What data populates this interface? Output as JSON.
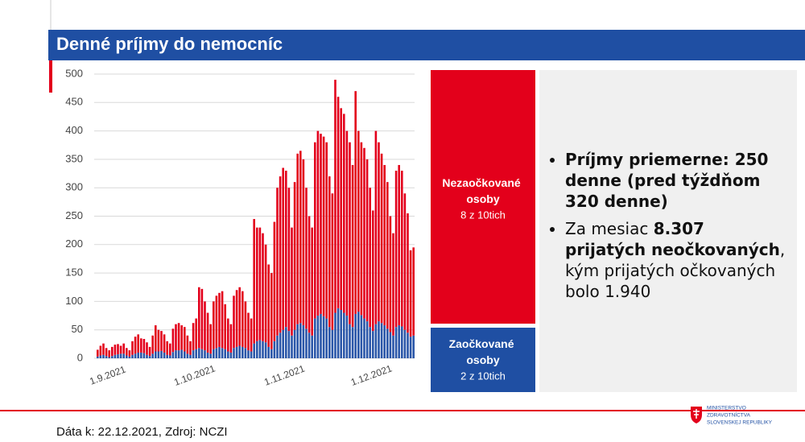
{
  "header": {
    "title": "Denné príjmy do nemocníc"
  },
  "chart_data": {
    "type": "stacked_bar",
    "categories": [
      "1.9.2021",
      null,
      null,
      null,
      null,
      null,
      null,
      null,
      null,
      null,
      null,
      null,
      null,
      null,
      null,
      null,
      null,
      null,
      null,
      null,
      null,
      null,
      null,
      null,
      null,
      null,
      null,
      null,
      null,
      null,
      "1.10.2021",
      null,
      null,
      null,
      null,
      null,
      null,
      null,
      null,
      null,
      null,
      null,
      null,
      null,
      null,
      null,
      null,
      null,
      null,
      null,
      null,
      null,
      null,
      null,
      null,
      null,
      null,
      null,
      null,
      null,
      null,
      "1.11.2021",
      null,
      null,
      null,
      null,
      null,
      null,
      null,
      null,
      null,
      null,
      null,
      null,
      null,
      null,
      null,
      null,
      null,
      null,
      null,
      null,
      null,
      null,
      null,
      null,
      null,
      null,
      null,
      null,
      null,
      "1.12.2021",
      null,
      null,
      null,
      null,
      null,
      null,
      null,
      null,
      null,
      null,
      null,
      null,
      null,
      null,
      null,
      null,
      null,
      null
    ],
    "series": [
      {
        "name": "Zaočkované osoby",
        "share": "2 z 10tich",
        "color": "#2a56a8",
        "values": [
          3,
          5,
          6,
          4,
          2,
          4,
          6,
          7,
          8,
          8,
          5,
          3,
          6,
          8,
          10,
          10,
          9,
          6,
          4,
          8,
          12,
          12,
          13,
          10,
          6,
          5,
          11,
          14,
          14,
          15,
          12,
          8,
          6,
          14,
          16,
          18,
          16,
          14,
          10,
          8,
          16,
          18,
          20,
          18,
          16,
          12,
          10,
          18,
          20,
          22,
          20,
          18,
          14,
          12,
          26,
          30,
          32,
          30,
          28,
          20,
          16,
          30,
          40,
          45,
          50,
          55,
          48,
          40,
          50,
          60,
          62,
          58,
          52,
          45,
          40,
          70,
          75,
          78,
          74,
          70,
          55,
          50,
          80,
          88,
          85,
          80,
          75,
          60,
          55,
          78,
          82,
          76,
          70,
          65,
          55,
          48,
          60,
          65,
          62,
          58,
          52,
          46,
          40,
          55,
          58,
          56,
          50,
          45,
          38,
          40
        ]
      },
      {
        "name": "Nezaočkované osoby",
        "share": "8 z 10tich",
        "color": "#e3001b",
        "values": [
          12,
          17,
          20,
          14,
          12,
          16,
          18,
          18,
          14,
          18,
          13,
          11,
          24,
          30,
          32,
          25,
          25,
          22,
          16,
          32,
          46,
          38,
          35,
          32,
          24,
          21,
          41,
          46,
          48,
          43,
          43,
          32,
          24,
          48,
          54,
          107,
          106,
          86,
          70,
          52,
          84,
          92,
          95,
          100,
          79,
          58,
          50,
          92,
          100,
          103,
          98,
          82,
          66,
          58,
          219,
          200,
          198,
          190,
          172,
          145,
          134,
          210,
          260,
          275,
          285,
          275,
          252,
          190,
          260,
          300,
          303,
          292,
          248,
          205,
          190,
          310,
          325,
          317,
          316,
          310,
          265,
          240,
          410,
          372,
          355,
          350,
          325,
          320,
          285,
          392,
          318,
          304,
          300,
          285,
          245,
          212,
          340,
          315,
          298,
          282,
          258,
          204,
          180,
          275,
          282,
          274,
          240,
          210,
          152,
          155
        ]
      }
    ],
    "ylim": [
      0,
      500
    ],
    "yticks": [
      0,
      50,
      100,
      150,
      200,
      250,
      300,
      350,
      400,
      450,
      500
    ],
    "grid": true
  },
  "panel": {
    "bullets": [
      {
        "parts": [
          {
            "text": "Príjmy priemerne: 250 denne (pred týždňom 320 denne)",
            "bold": true
          }
        ]
      },
      {
        "parts": [
          {
            "text": "Za mesiac ",
            "bold": false
          },
          {
            "text": "8.307 prijatých neočkovaných",
            "bold": true
          },
          {
            "text": ", kým prijatých očkovaných bolo 1.940",
            "bold": false
          }
        ]
      }
    ]
  },
  "footer": {
    "source": "Dáta k: 22.12.2021, Zdroj: NCZI",
    "logo": [
      "MINISTERSTVO",
      "ZDRAVOTNÍCTVA",
      "SLOVENSKEJ REPUBLIKY"
    ]
  }
}
